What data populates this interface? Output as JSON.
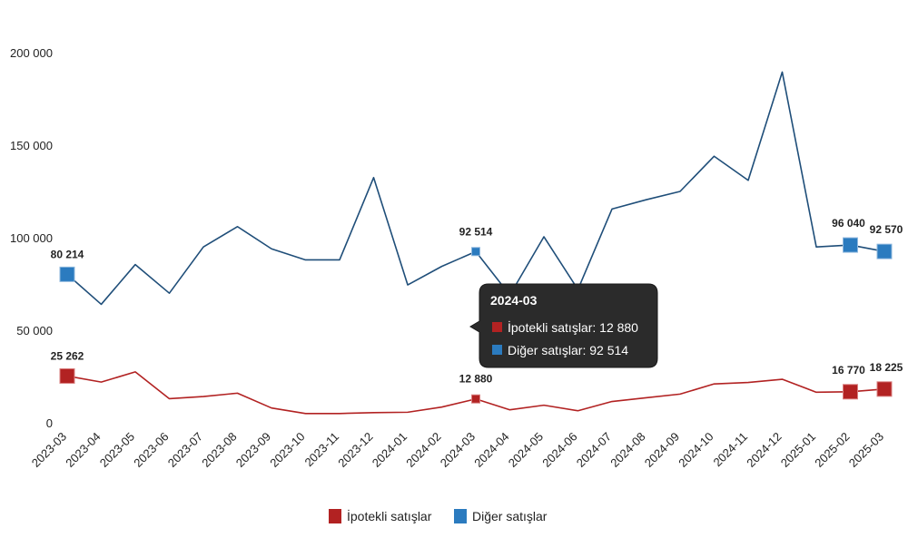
{
  "chart_data": {
    "type": "line",
    "categories": [
      "2023-03",
      "2023-04",
      "2023-05",
      "2023-06",
      "2023-07",
      "2023-08",
      "2023-09",
      "2023-10",
      "2023-11",
      "2023-12",
      "2024-01",
      "2024-02",
      "2024-03",
      "2024-04",
      "2024-05",
      "2024-06",
      "2024-07",
      "2024-08",
      "2024-09",
      "2024-10",
      "2024-11",
      "2024-12",
      "2025-01",
      "2025-02",
      "2025-03"
    ],
    "series": [
      {
        "name": "İpotekli satışlar",
        "color": "#b22222",
        "values": [
          25262,
          22000,
          27500,
          13000,
          14200,
          16000,
          8000,
          5000,
          5000,
          5500,
          5700,
          8500,
          12880,
          7000,
          9500,
          6500,
          11500,
          13500,
          15500,
          21000,
          21800,
          23500,
          16500,
          16770,
          18225
        ]
      },
      {
        "name": "Diğer satışlar",
        "color": "#1f4e79",
        "marker_color": "#2b7bbf",
        "values": [
          80214,
          64000,
          85500,
          70000,
          95000,
          106000,
          94000,
          88000,
          88000,
          132500,
          74500,
          84500,
          92514,
          69000,
          100500,
          72000,
          115500,
          120500,
          125000,
          144000,
          131000,
          189500,
          95000,
          96040,
          92570
        ]
      }
    ],
    "y_ticks": [
      "200 000",
      "150 000",
      "100 000",
      "50 000",
      "0"
    ],
    "ylim": [
      0,
      200000
    ],
    "labeled_points": [
      {
        "series": 1,
        "index": 0,
        "text": "80 214"
      },
      {
        "series": 1,
        "index": 12,
        "text": "92 514"
      },
      {
        "series": 1,
        "index": 23,
        "text": "96 040"
      },
      {
        "series": 1,
        "index": 24,
        "text": "92 570"
      },
      {
        "series": 0,
        "index": 0,
        "text": "25 262"
      },
      {
        "series": 0,
        "index": 12,
        "text": "12 880"
      },
      {
        "series": 0,
        "index": 23,
        "text": "16 770"
      },
      {
        "series": 0,
        "index": 24,
        "text": "18 225"
      }
    ],
    "legend_position": "bottom-center",
    "grid": false
  },
  "tooltip": {
    "title": "2024-03",
    "rows": [
      {
        "label": "İpotekli satışlar: 12 880",
        "color": "#b22222"
      },
      {
        "label": "Diğer satışlar: 92 514",
        "color": "#2b7bbf"
      }
    ]
  },
  "legend": {
    "items": [
      {
        "label": "İpotekli satışlar",
        "color": "#b22222"
      },
      {
        "label": "Diğer satışlar",
        "color": "#2b7bbf"
      }
    ]
  }
}
